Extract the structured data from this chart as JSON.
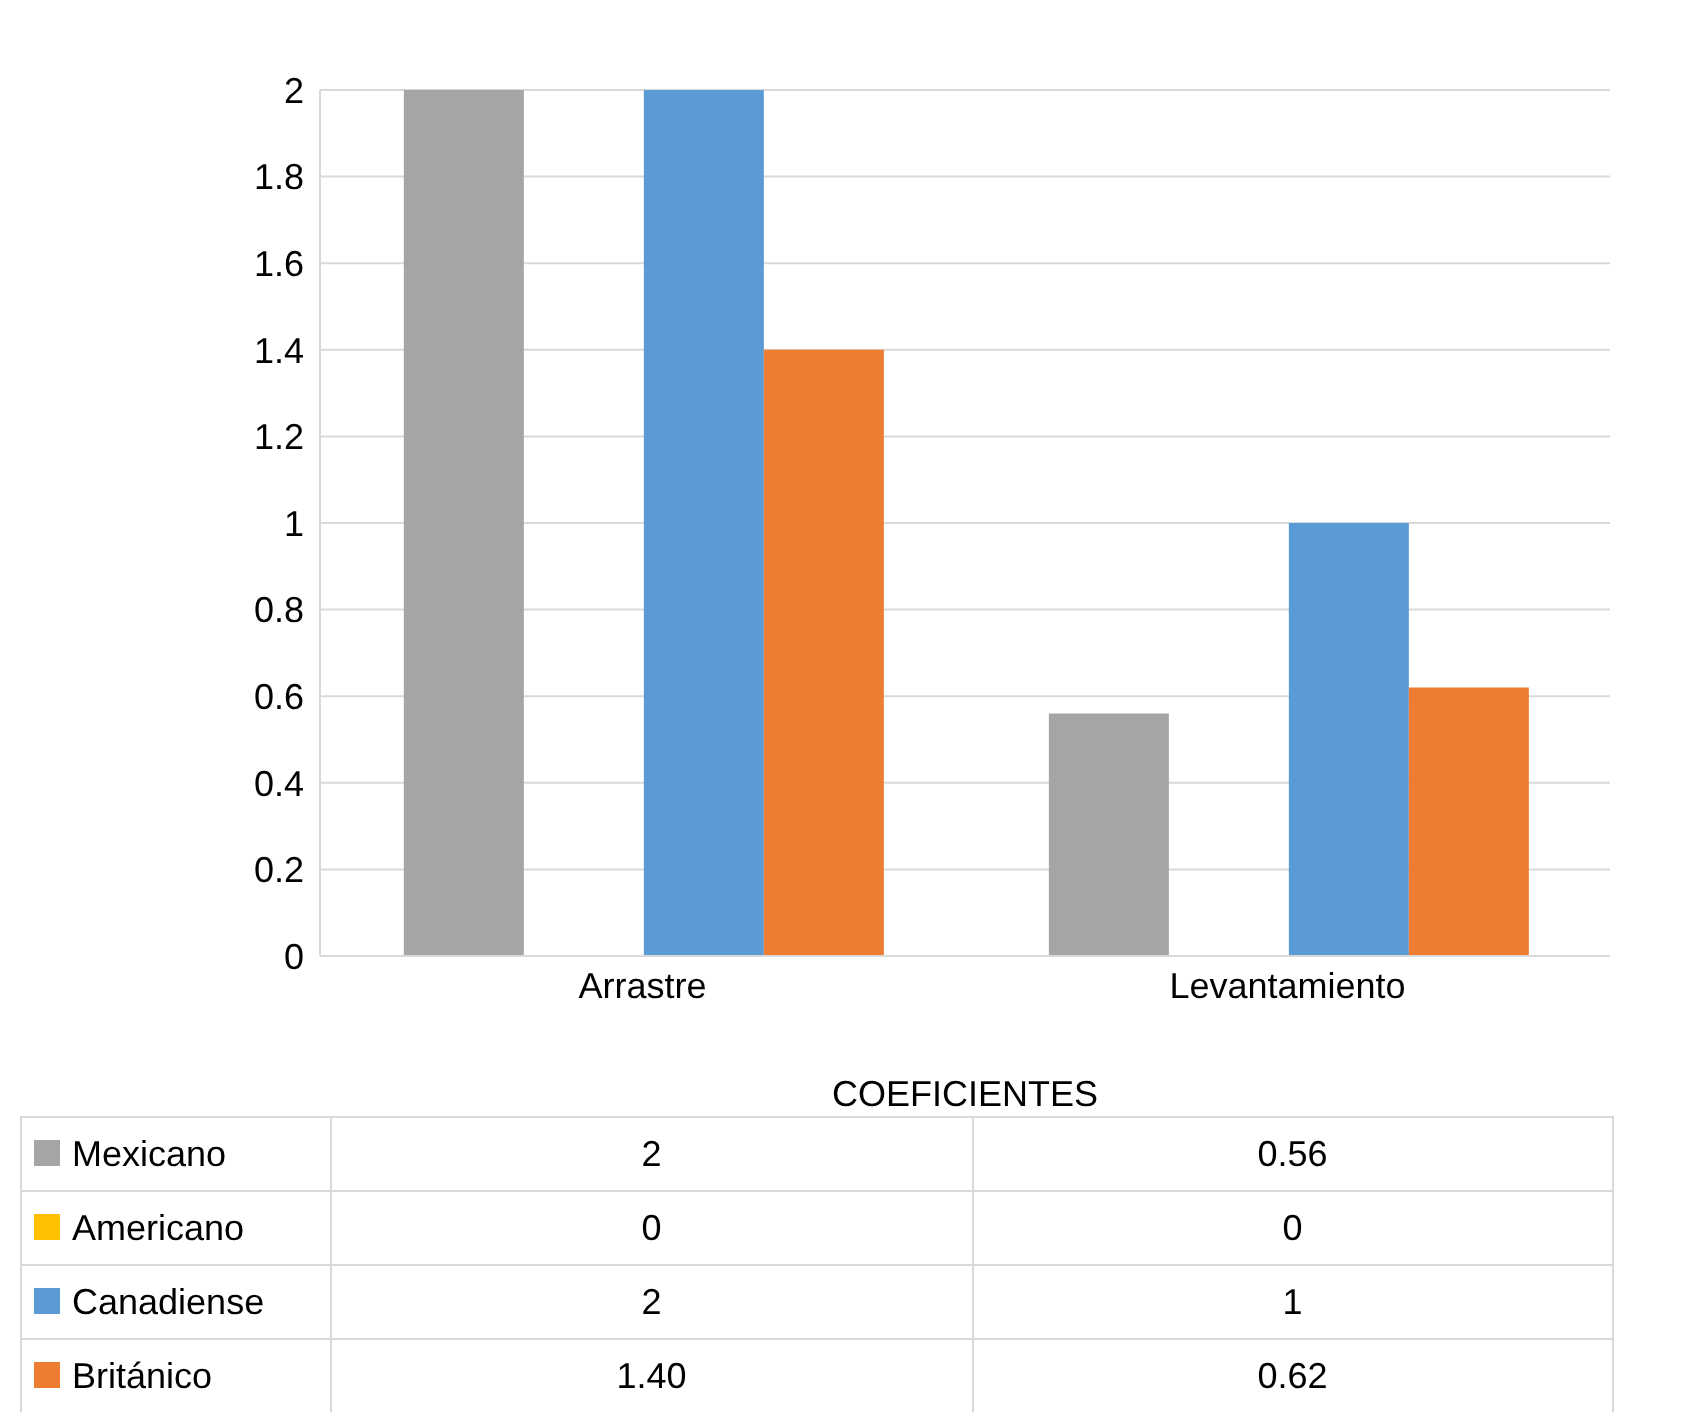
{
  "chart_data": {
    "type": "bar",
    "categories": [
      "Arrastre",
      "Levantamiento"
    ],
    "xlabel": "COEFICIENTES",
    "series": [
      {
        "name": "Mexicano",
        "color": "#a5a5a5",
        "values": [
          2,
          0.56
        ],
        "value_labels": [
          "2",
          "0.56"
        ]
      },
      {
        "name": "Americano",
        "color": "#ffc000",
        "values": [
          0,
          0
        ],
        "value_labels": [
          "0",
          "0"
        ]
      },
      {
        "name": "Canadiense",
        "color": "#5b9bd5",
        "values": [
          2,
          1
        ],
        "value_labels": [
          "2",
          "1"
        ]
      },
      {
        "name": "Británico",
        "color": "#ed7d31",
        "values": [
          1.4,
          0.62
        ],
        "value_labels": [
          "1.40",
          "0.62"
        ]
      }
    ],
    "ylim": [
      0,
      2
    ],
    "yticks": [
      0,
      0.2,
      0.4,
      0.6,
      0.8,
      1,
      1.2,
      1.4,
      1.6,
      1.8,
      2
    ],
    "grid": "y",
    "legend": "bottom"
  }
}
